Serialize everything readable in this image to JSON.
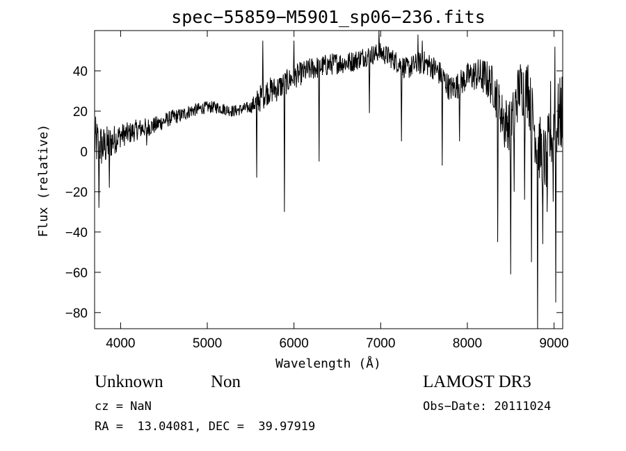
{
  "chart_data": {
    "type": "line",
    "title": "spec−55859−M5901_sp06−236.fits",
    "xlabel": "Wavelength (Å)",
    "ylabel": "Flux (relative)",
    "xlim": [
      3700,
      9100
    ],
    "ylim": [
      -88,
      60
    ],
    "xticks": [
      4000,
      5000,
      6000,
      7000,
      8000,
      9000
    ],
    "yticks": [
      -80,
      -60,
      -40,
      -20,
      0,
      20,
      40
    ],
    "ytick_labels": [
      "−80",
      "−60",
      "−40",
      "−20",
      "0",
      "20",
      "40"
    ],
    "series": [
      {
        "name": "spectrum",
        "anchors": [
          [
            3700,
            5
          ],
          [
            3800,
            2
          ],
          [
            3900,
            5
          ],
          [
            4000,
            8
          ],
          [
            4100,
            9
          ],
          [
            4200,
            11
          ],
          [
            4300,
            12
          ],
          [
            4400,
            13
          ],
          [
            4500,
            15
          ],
          [
            4600,
            17
          ],
          [
            4700,
            18
          ],
          [
            4800,
            20
          ],
          [
            4900,
            21
          ],
          [
            5000,
            22
          ],
          [
            5100,
            22
          ],
          [
            5200,
            21
          ],
          [
            5300,
            20
          ],
          [
            5400,
            21
          ],
          [
            5500,
            22
          ],
          [
            5600,
            26
          ],
          [
            5700,
            30
          ],
          [
            5800,
            31
          ],
          [
            5900,
            34
          ],
          [
            6000,
            37
          ],
          [
            6100,
            39
          ],
          [
            6200,
            41
          ],
          [
            6300,
            42
          ],
          [
            6400,
            43
          ],
          [
            6500,
            44
          ],
          [
            6600,
            44
          ],
          [
            6700,
            45
          ],
          [
            6800,
            47
          ],
          [
            6900,
            48
          ],
          [
            7000,
            49
          ],
          [
            7100,
            47
          ],
          [
            7200,
            44
          ],
          [
            7300,
            41
          ],
          [
            7400,
            43
          ],
          [
            7500,
            44
          ],
          [
            7600,
            42
          ],
          [
            7700,
            38
          ],
          [
            7800,
            31
          ],
          [
            7900,
            33
          ],
          [
            8000,
            37
          ],
          [
            8100,
            38
          ],
          [
            8200,
            37
          ],
          [
            8300,
            32
          ],
          [
            8400,
            18
          ],
          [
            8500,
            12
          ],
          [
            8600,
            32
          ],
          [
            8700,
            30
          ],
          [
            8800,
            5
          ],
          [
            8900,
            -5
          ],
          [
            9000,
            12
          ],
          [
            9050,
            16
          ],
          [
            9100,
            20
          ]
        ],
        "noise": [
          [
            3700,
            13
          ],
          [
            4000,
            6
          ],
          [
            4500,
            4
          ],
          [
            5000,
            3
          ],
          [
            5500,
            3
          ],
          [
            5600,
            7
          ],
          [
            6000,
            6
          ],
          [
            7000,
            5
          ],
          [
            7500,
            6
          ],
          [
            8000,
            7
          ],
          [
            8400,
            12
          ],
          [
            8700,
            15
          ],
          [
            9100,
            20
          ]
        ],
        "dips": [
          [
            3750,
            -28
          ],
          [
            3870,
            -18
          ],
          [
            4300,
            3
          ],
          [
            5570,
            -13
          ],
          [
            5890,
            -30
          ],
          [
            6290,
            -5
          ],
          [
            6870,
            19
          ],
          [
            7240,
            5
          ],
          [
            7710,
            -7
          ],
          [
            7910,
            5
          ],
          [
            8350,
            -45
          ],
          [
            8430,
            2
          ],
          [
            8500,
            -61
          ],
          [
            8540,
            -20
          ],
          [
            8660,
            -24
          ],
          [
            8740,
            -55
          ],
          [
            8810,
            -88
          ],
          [
            8870,
            -46
          ],
          [
            8920,
            -30
          ],
          [
            8990,
            -25
          ],
          [
            9020,
            -75
          ]
        ],
        "spikes": [
          [
            5640,
            55
          ],
          [
            6000,
            55
          ],
          [
            6980,
            60
          ],
          [
            7430,
            58
          ],
          [
            7480,
            55
          ],
          [
            8700,
            43
          ],
          [
            8960,
            35
          ],
          [
            9010,
            52
          ]
        ]
      }
    ]
  },
  "labels": {
    "object_class": "Unknown",
    "object_subclass": "Non",
    "survey": "LAMOST DR3",
    "cz": "cz = NaN",
    "obs_date": "Obs−Date: 20111024",
    "coords": "RA =  13.04081, DEC =  39.97919"
  }
}
